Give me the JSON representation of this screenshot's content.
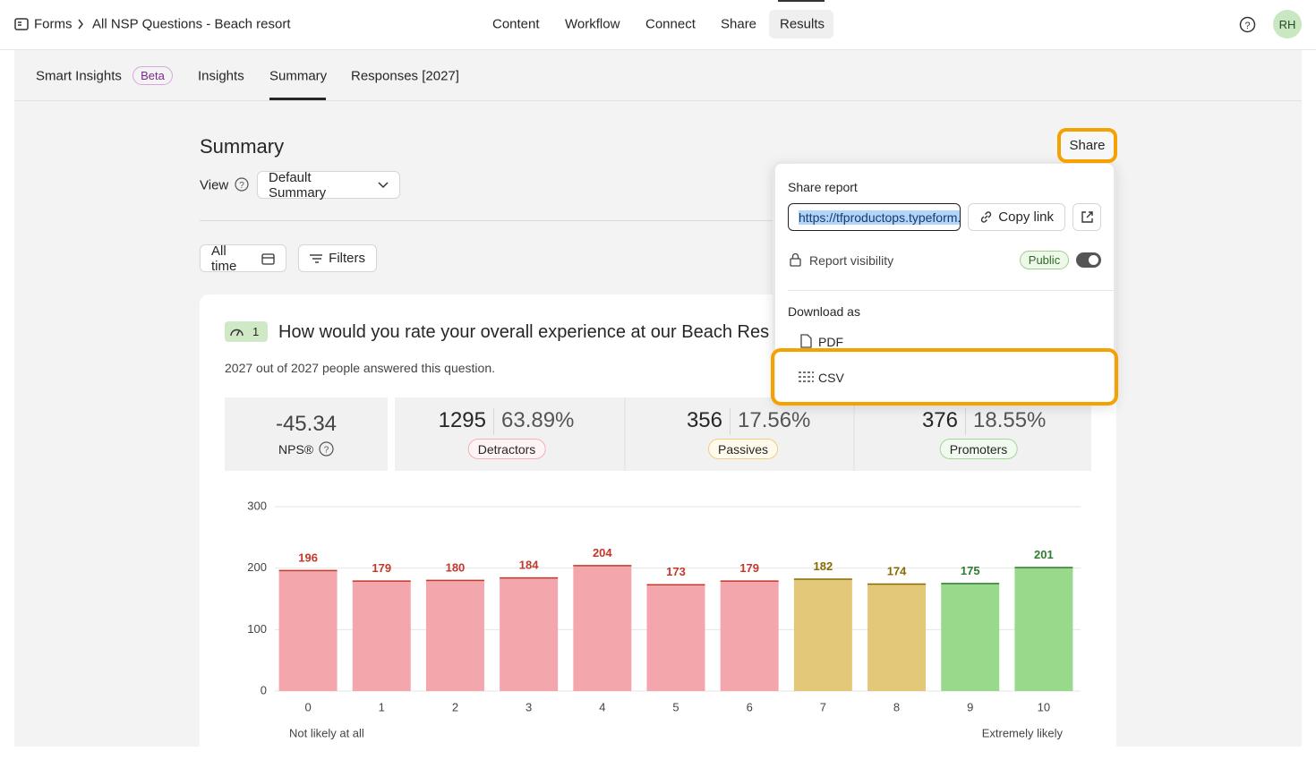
{
  "nav": {
    "breadcrumb": [
      "Forms",
      "All NSP Questions - Beach resort"
    ],
    "tabs": [
      "Content",
      "Workflow",
      "Connect",
      "Share",
      "Results"
    ],
    "avatar": "RH"
  },
  "subtabs": {
    "smart_insights": "Smart Insights",
    "beta": "Beta",
    "insights": "Insights",
    "summary": "Summary",
    "responses": "Responses [2027]"
  },
  "summary": {
    "title": "Summary",
    "view_label": "View",
    "view_value": "Default Summary",
    "all_time": "All time",
    "filters": "Filters",
    "share_button": "Share"
  },
  "question": {
    "number": "1",
    "text": "How would you rate your overall experience at our Beach Res",
    "answered": "2027 out of 2027 people answered this question."
  },
  "nps": {
    "value": -45.34,
    "label": "NPS®"
  },
  "groups": [
    {
      "count": 1295,
      "percent": "63.89%",
      "name": "Detractors"
    },
    {
      "count": 356,
      "percent": "17.56%",
      "name": "Passives"
    },
    {
      "count": 376,
      "percent": "18.55%",
      "name": "Promoters"
    }
  ],
  "chart_data": {
    "type": "bar",
    "categories": [
      "0",
      "1",
      "2",
      "3",
      "4",
      "5",
      "6",
      "7",
      "8",
      "9",
      "10"
    ],
    "values": [
      196,
      179,
      180,
      184,
      204,
      173,
      179,
      182,
      174,
      175,
      201
    ],
    "colors": [
      "#f3a7ad",
      "#f3a7ad",
      "#f3a7ad",
      "#f3a7ad",
      "#f3a7ad",
      "#f3a7ad",
      "#f3a7ad",
      "#e4c87a",
      "#e4c87a",
      "#99d98b",
      "#99d98b"
    ],
    "label_colors": [
      "#c0392b",
      "#c0392b",
      "#c0392b",
      "#c0392b",
      "#c0392b",
      "#c0392b",
      "#c0392b",
      "#8a6a00",
      "#8a6a00",
      "#2e7d32",
      "#2e7d32"
    ],
    "ylim": [
      0,
      300
    ],
    "yticks": [
      0,
      100,
      200,
      300
    ],
    "grid": true,
    "x_start_label": "Not likely at all",
    "x_end_label": "Extremely likely"
  },
  "share_popup": {
    "title": "Share report",
    "url": "https://tfproductops.typeform.com",
    "copy_link": "Copy link",
    "visibility_label": "Report visibility",
    "visibility_value": "Public",
    "download_as": "Download as",
    "pdf": "PDF",
    "csv": "CSV"
  }
}
